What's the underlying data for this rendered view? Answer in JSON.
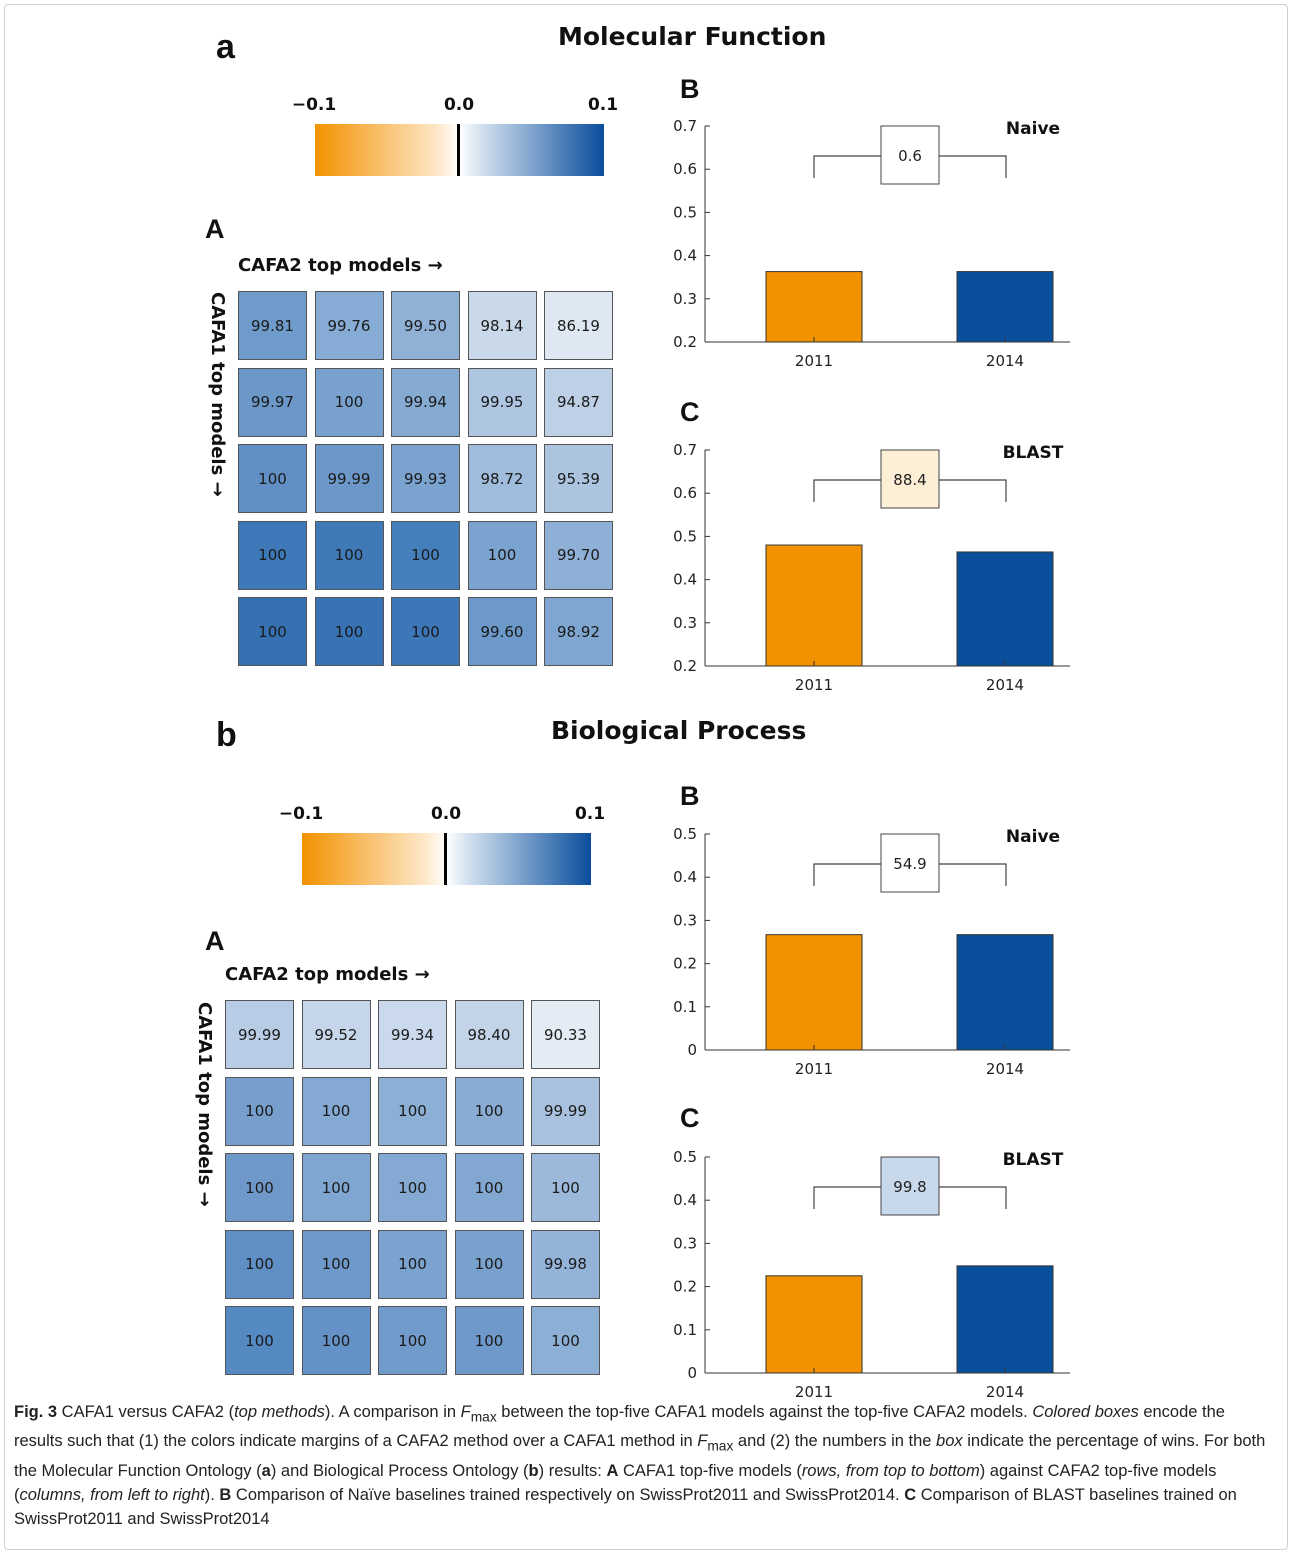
{
  "sections": [
    {
      "letter": "a",
      "title": "Molecular Function",
      "colorbar": {
        "min_label": "−0.1",
        "mid_label": "0.0",
        "max_label": "0.1"
      },
      "heatmap": {
        "letter": "A",
        "xlabel": "CAFA2 top models →",
        "ylabel": "CAFA1 top models →",
        "rows": [
          [
            "99.81",
            "99.76",
            "99.50",
            "98.14",
            "86.19"
          ],
          [
            "99.97",
            "100",
            "99.94",
            "99.95",
            "94.87"
          ],
          [
            "100",
            "99.99",
            "99.93",
            "98.72",
            "95.39"
          ],
          [
            "100",
            "100",
            "100",
            "100",
            "99.70"
          ],
          [
            "100",
            "100",
            "100",
            "99.60",
            "98.92"
          ]
        ],
        "colors": [
          [
            "#6f9bcb",
            "#86abd4",
            "#8fb1d6",
            "#c9d9ea",
            "#dde8f2"
          ],
          [
            "#6c98c9",
            "#78a1ce",
            "#86abd3",
            "#aec6e1",
            "#bdd0e6"
          ],
          [
            "#5f8fc4",
            "#6c98c9",
            "#7aa3cf",
            "#a0bcdc",
            "#acc4e0"
          ],
          [
            "#3d78b8",
            "#3f79b8",
            "#4680bc",
            "#7aa3cf",
            "#8eb0d6"
          ],
          [
            "#3570b3",
            "#3873b5",
            "#3d77b8",
            "#6d99ca",
            "#7ea6d0"
          ]
        ]
      },
      "bar_charts": [
        {
          "letter": "B",
          "label": "Naive",
          "win_pct": "0.6",
          "box_color": "#ffffff",
          "ylim": [
            0.2,
            0.7
          ],
          "yticks": [
            "0.2",
            "0.3",
            "0.4",
            "0.5",
            "0.6",
            "0.7"
          ],
          "categories": [
            "2011",
            "2014"
          ],
          "values": [
            0.363,
            0.363
          ]
        },
        {
          "letter": "C",
          "label": "BLAST",
          "win_pct": "88.4",
          "box_color": "#fdeed6",
          "ylim": [
            0.2,
            0.7
          ],
          "yticks": [
            "0.2",
            "0.3",
            "0.4",
            "0.5",
            "0.6",
            "0.7"
          ],
          "categories": [
            "2011",
            "2014"
          ],
          "values": [
            0.48,
            0.464
          ]
        }
      ]
    },
    {
      "letter": "b",
      "title": "Biological Process",
      "colorbar": {
        "min_label": "−0.1",
        "mid_label": "0.0",
        "max_label": "0.1"
      },
      "heatmap": {
        "letter": "A",
        "xlabel": "CAFA2 top models →",
        "ylabel": "CAFA1 top models →",
        "rows": [
          [
            "99.99",
            "99.52",
            "99.34",
            "98.40",
            "90.33"
          ],
          [
            "100",
            "100",
            "100",
            "100",
            "99.99"
          ],
          [
            "100",
            "100",
            "100",
            "100",
            "100"
          ],
          [
            "100",
            "100",
            "100",
            "100",
            "99.98"
          ],
          [
            "100",
            "100",
            "100",
            "100",
            "100"
          ]
        ],
        "colors": [
          [
            "#b8cde5",
            "#c5d6ea",
            "#cad9ec",
            "#c3d4e9",
            "#e3ebf4"
          ],
          [
            "#779fcd",
            "#84aad3",
            "#8cafd6",
            "#88acd4",
            "#a8c1df"
          ],
          [
            "#6d98c9",
            "#7ea6d1",
            "#84aad3",
            "#82a8d2",
            "#9cb9db"
          ],
          [
            "#5f8fc4",
            "#6e99ca",
            "#7aa3cf",
            "#78a1ce",
            "#93b3d8"
          ],
          [
            "#5589c1",
            "#6592c6",
            "#719bcb",
            "#6e99ca",
            "#8cafd6"
          ]
        ]
      },
      "bar_charts": [
        {
          "letter": "B",
          "label": "Naive",
          "win_pct": "54.9",
          "box_color": "#ffffff",
          "ylim": [
            0,
            0.5
          ],
          "yticks": [
            "0",
            "0.1",
            "0.2",
            "0.3",
            "0.4",
            "0.5"
          ],
          "categories": [
            "2011",
            "2014"
          ],
          "values": [
            0.267,
            0.267
          ]
        },
        {
          "letter": "C",
          "label": "BLAST",
          "win_pct": "99.8",
          "box_color": "#c9d9ec",
          "ylim": [
            0,
            0.5
          ],
          "yticks": [
            "0",
            "0.1",
            "0.2",
            "0.3",
            "0.4",
            "0.5"
          ],
          "categories": [
            "2011",
            "2014"
          ],
          "values": [
            0.225,
            0.248
          ]
        }
      ]
    }
  ],
  "bar_colors": {
    "2011": "#f39200",
    "2014": "#0a4f9c"
  },
  "caption": {
    "fig_label": "Fig. 3",
    "text1": " CAFA1 versus CAFA2 (",
    "text1_em": "top methods",
    "text2": "). A comparison in ",
    "fmax_f": "F",
    "fmax_sub": "max",
    "text3": " between the top-five CAFA1 models against the top-five CAFA2 models. ",
    "text3_em": "Colored boxes",
    "text4": " encode the results such that (1) the colors indicate margins of a CAFA2 method over a CAFA1 method in ",
    "text5": " and (2) the numbers in the ",
    "text5_em": "box",
    "text6": " indicate the percentage of wins. For both the Molecular Function Ontology (",
    "a_bold": "a",
    "text7": ") and Biological Process Ontology (",
    "b_bold": "b",
    "text8": ") results: ",
    "A_bold": "A",
    "text9": " CAFA1 top-five models (",
    "text9_em": "rows, from top to bottom",
    "text10": ") against CAFA2 top-five models (",
    "text10_em": "columns, from left to right",
    "text11": "). ",
    "B_bold": "B",
    "text12": " Comparison of Naïve baselines trained respectively on SwissProt2011 and SwissProt2014. ",
    "C_bold": "C",
    "text13": " Comparison of BLAST baselines trained on SwissProt2011 and SwissProt2014"
  },
  "chart_data": [
    {
      "type": "heatmap",
      "title": "Molecular Function — A",
      "xlabel": "CAFA2 top models →",
      "ylabel": "CAFA1 top models →",
      "values": [
        [
          99.81,
          99.76,
          99.5,
          98.14,
          86.19
        ],
        [
          99.97,
          100,
          99.94,
          99.95,
          94.87
        ],
        [
          100,
          99.99,
          99.93,
          98.72,
          95.39
        ],
        [
          100,
          100,
          100,
          100,
          99.7
        ],
        [
          100,
          100,
          100,
          99.6,
          98.92
        ]
      ],
      "colorbar_range": [
        -0.1,
        0.1
      ]
    },
    {
      "type": "bar",
      "title": "Naive",
      "categories": [
        "2011",
        "2014"
      ],
      "values": [
        0.363,
        0.363
      ],
      "ylim": [
        0.2,
        0.7
      ],
      "annotation": "0.6"
    },
    {
      "type": "bar",
      "title": "BLAST",
      "categories": [
        "2011",
        "2014"
      ],
      "values": [
        0.48,
        0.464
      ],
      "ylim": [
        0.2,
        0.7
      ],
      "annotation": "88.4"
    },
    {
      "type": "heatmap",
      "title": "Biological Process — A",
      "xlabel": "CAFA2 top models →",
      "ylabel": "CAFA1 top models →",
      "values": [
        [
          99.99,
          99.52,
          99.34,
          98.4,
          90.33
        ],
        [
          100,
          100,
          100,
          100,
          99.99
        ],
        [
          100,
          100,
          100,
          100,
          100
        ],
        [
          100,
          100,
          100,
          100,
          99.98
        ],
        [
          100,
          100,
          100,
          100,
          100
        ]
      ],
      "colorbar_range": [
        -0.1,
        0.1
      ]
    },
    {
      "type": "bar",
      "title": "Naive",
      "categories": [
        "2011",
        "2014"
      ],
      "values": [
        0.267,
        0.267
      ],
      "ylim": [
        0,
        0.5
      ],
      "annotation": "54.9"
    },
    {
      "type": "bar",
      "title": "BLAST",
      "categories": [
        "2011",
        "2014"
      ],
      "values": [
        0.225,
        0.248
      ],
      "ylim": [
        0,
        0.5
      ],
      "annotation": "99.8"
    }
  ]
}
